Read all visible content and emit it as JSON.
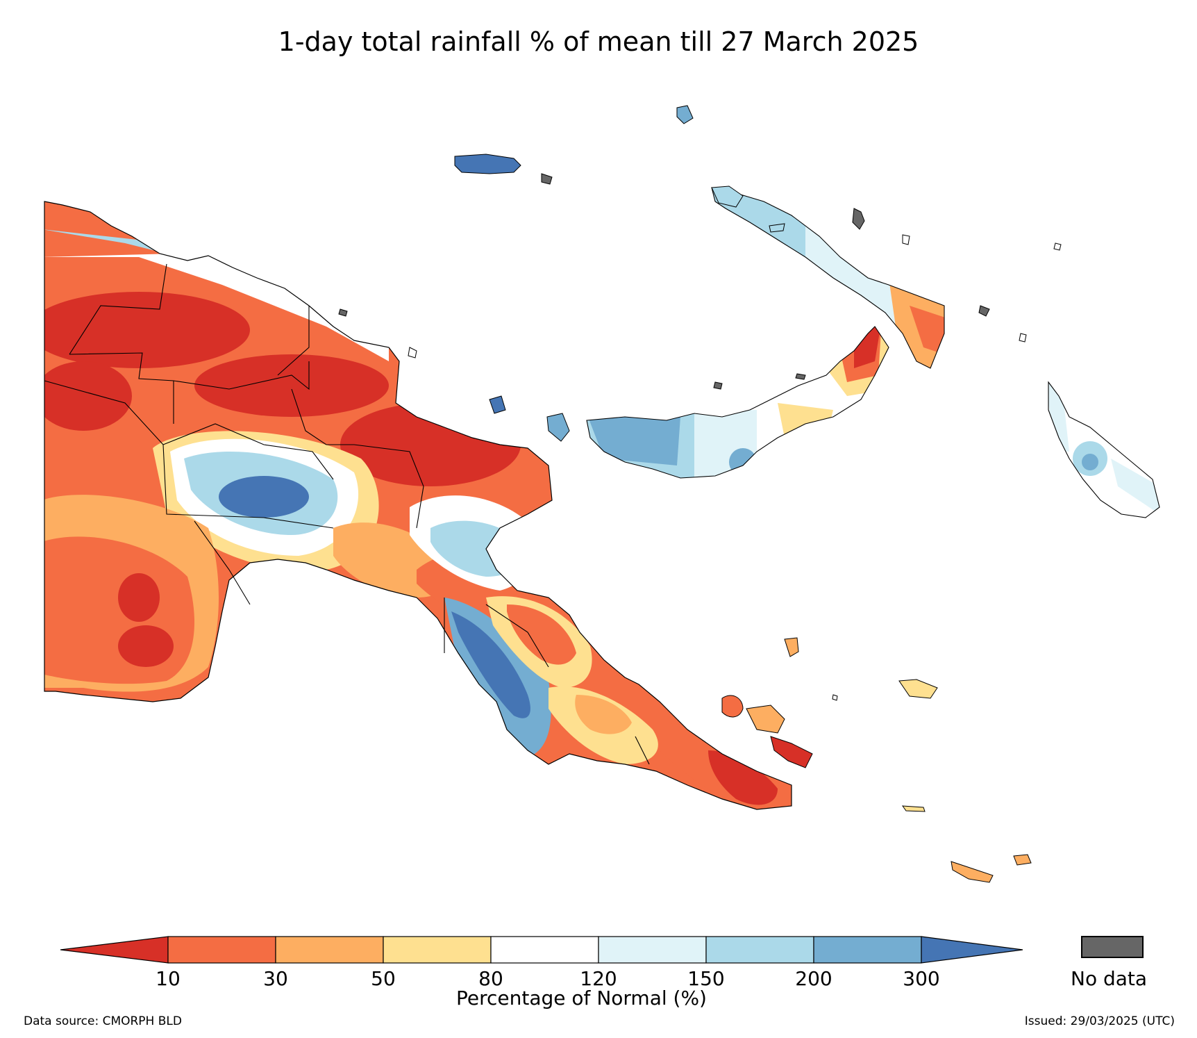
{
  "title": "1-day total rainfall % of mean till 27 March 2025",
  "legend": {
    "ticks": [
      "10",
      "30",
      "50",
      "80",
      "120",
      "150",
      "200",
      "300"
    ],
    "label": "Percentage of Normal (%)",
    "colors": [
      "#d73027",
      "#f46d43",
      "#fdae61",
      "#fee090",
      "#ffffff",
      "#e0f3f8",
      "#abd9e9",
      "#74add1",
      "#4575b4"
    ],
    "nodata_color": "#666666",
    "nodata_label": "No data"
  },
  "footer": {
    "source": "Data source: CMORPH BLD",
    "issued": "Issued: 29/03/2025 (UTC)"
  }
}
